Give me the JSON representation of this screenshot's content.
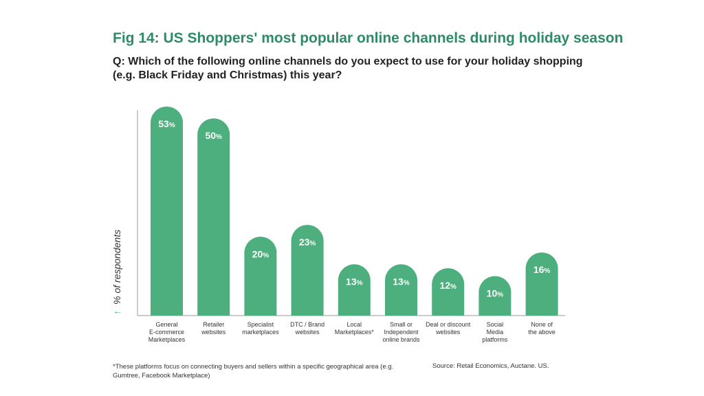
{
  "title": "Fig 14: US Shoppers' most popular online channels during holiday season",
  "question": "Q: Which of the following online channels do you expect to use for your holiday shopping (e.g. Black Friday and Christmas) this year?",
  "footnote": "*These platforms focus on connecting buyers and sellers within a specific geographical area (e.g. Gumtree, Facebook Marketplace)",
  "source": "Source: Retail Economics, Auctane. US.",
  "colors": {
    "bar": "#4caf7d",
    "title": "#2e8b66",
    "axis": "#999999"
  },
  "chart_data": {
    "type": "bar",
    "title": "Fig 14: US Shoppers' most popular online channels during holiday season",
    "ylabel": "% of respondents",
    "ylabel_arrow": "↑",
    "ylim": [
      0,
      53
    ],
    "grid": false,
    "legend": "none",
    "value_suffix": "%",
    "categories": [
      [
        "General",
        "E-commerce",
        "Marketplaces"
      ],
      [
        "Retailer",
        "websites"
      ],
      [
        "Specialist",
        "marketplaces"
      ],
      [
        "DTC / Brand",
        "websites"
      ],
      [
        "Local",
        "Marketplaces*"
      ],
      [
        "Small or",
        "Independent",
        "online brands"
      ],
      [
        "Deal or discount",
        "websites"
      ],
      [
        "Social",
        "Media",
        "platforms"
      ],
      [
        "None of",
        "the above"
      ]
    ],
    "values": [
      53,
      50,
      20,
      23,
      13,
      13,
      12,
      10,
      16
    ]
  }
}
